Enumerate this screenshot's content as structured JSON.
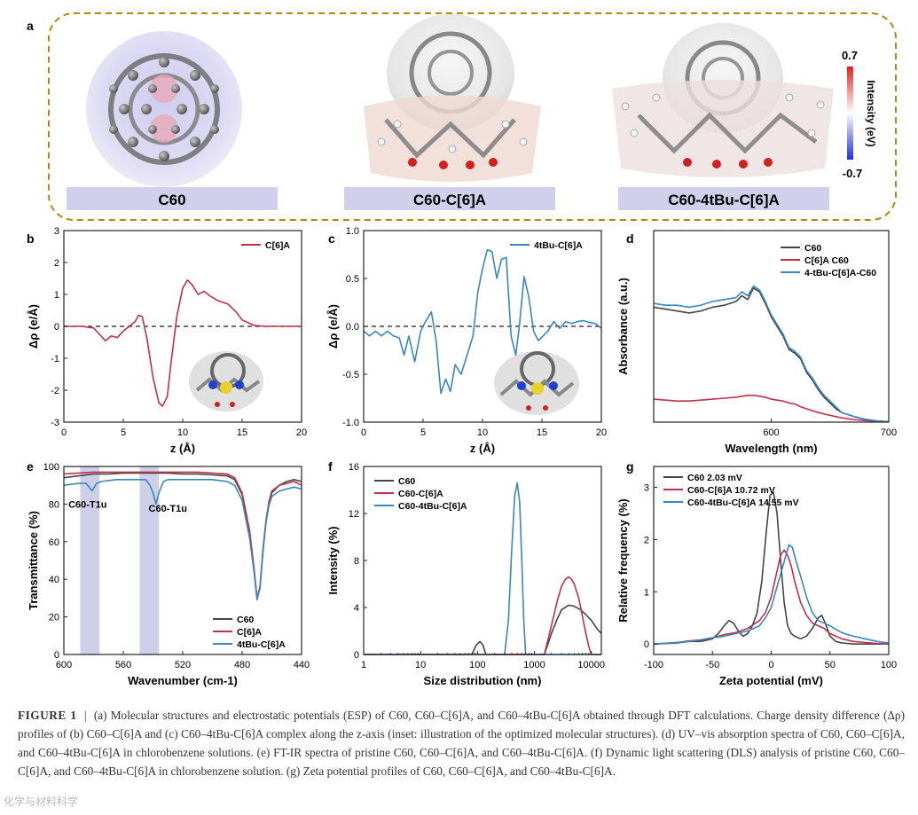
{
  "panel_letters": [
    "a",
    "b",
    "c",
    "d",
    "e",
    "f",
    "g"
  ],
  "panel_a": {
    "labels": [
      "C60",
      "C60-C[6]A",
      "C60-4tBu-C[6]A"
    ],
    "colorbar": {
      "title": "Intensity (eV)",
      "max": "0.7",
      "min": "-0.7"
    }
  },
  "chart_data": [
    {
      "id": "b",
      "type": "line",
      "xlabel": "z (Å)",
      "ylabel": "Δρ (e/Å)",
      "xlim": [
        0,
        20
      ],
      "ylim": [
        -3,
        3
      ],
      "xticks": [
        0,
        5,
        10,
        15,
        20
      ],
      "yticks": [
        -3,
        -2,
        -1,
        0,
        1,
        2,
        3
      ],
      "legend": "top-right",
      "series": [
        {
          "name": "C[6]A",
          "color": "#c0304a",
          "x": [
            0,
            1.5,
            2.5,
            3,
            3.5,
            4,
            4.5,
            5,
            5.5,
            6,
            6.3,
            6.6,
            7,
            7.5,
            8,
            8.3,
            8.7,
            9,
            9.5,
            10,
            10.4,
            10.8,
            11.3,
            11.8,
            12.3,
            13,
            13.8,
            14.5,
            15,
            16,
            17,
            20
          ],
          "y": [
            0,
            0,
            -0.05,
            -0.25,
            -0.45,
            -0.3,
            -0.35,
            -0.15,
            0,
            0.15,
            0.35,
            0.3,
            -0.4,
            -1.6,
            -2.4,
            -2.5,
            -2.2,
            -1.2,
            0.3,
            1.2,
            1.45,
            1.3,
            1.0,
            1.1,
            0.95,
            0.8,
            0.7,
            0.45,
            0.2,
            0.03,
            0,
            0
          ]
        }
      ],
      "zero_line": true
    },
    {
      "id": "c",
      "type": "line",
      "xlabel": "z (Å)",
      "ylabel": "Δρ (e/Å)",
      "xlim": [
        0,
        20
      ],
      "ylim": [
        -1.0,
        1.0
      ],
      "xticks": [
        0,
        5,
        10,
        15,
        20
      ],
      "yticks": [
        -1.0,
        -0.5,
        0.0,
        0.5,
        1.0
      ],
      "legend": "top-right",
      "series": [
        {
          "name": "4tBu-C[6]A",
          "color": "#3a86c0",
          "x": [
            0,
            0.5,
            1,
            1.5,
            2,
            2.5,
            3,
            3.4,
            3.8,
            4.3,
            4.8,
            5.2,
            5.7,
            6.1,
            6.5,
            6.9,
            7.3,
            7.7,
            8.2,
            8.7,
            9.2,
            9.6,
            10,
            10.4,
            10.8,
            11.2,
            11.6,
            12,
            12.4,
            12.8,
            13.1,
            13.5,
            13.9,
            14.3,
            14.7,
            15.1,
            15.5,
            16,
            16.5,
            17,
            17.5,
            18,
            18.5,
            19,
            19.5,
            20
          ],
          "y": [
            -0.05,
            -0.1,
            -0.05,
            -0.1,
            -0.05,
            -0.1,
            -0.12,
            -0.3,
            -0.1,
            -0.37,
            -0.05,
            0.05,
            0.15,
            -0.15,
            -0.7,
            -0.55,
            -0.68,
            -0.4,
            -0.5,
            -0.3,
            -0.1,
            0.35,
            0.6,
            0.8,
            0.78,
            0.5,
            0.7,
            0.72,
            -0.1,
            -0.3,
            0.0,
            0.52,
            0.3,
            -0.05,
            -0.15,
            -0.1,
            -0.05,
            0.05,
            -0.02,
            0.05,
            0.03,
            0.05,
            0.06,
            0.04,
            0.03,
            -0.02
          ]
        }
      ],
      "zero_line": true
    },
    {
      "id": "d",
      "type": "line",
      "xlabel": "Wavelength (nm)",
      "ylabel": "Absorbance (a.u.)",
      "xlim": [
        500,
        700
      ],
      "ylim": [
        0,
        1.0
      ],
      "xticks": [
        600,
        700
      ],
      "yticks": [],
      "legend": "top-right",
      "series": [
        {
          "name": "C60",
          "color": "#444444",
          "x": [
            500,
            510,
            520,
            530,
            540,
            550,
            560,
            570,
            575,
            580,
            585,
            590,
            595,
            600,
            605,
            610,
            615,
            620,
            625,
            630,
            635,
            640,
            645,
            650,
            655,
            660,
            670,
            680,
            690,
            700
          ],
          "y": [
            0.6,
            0.59,
            0.58,
            0.57,
            0.58,
            0.6,
            0.61,
            0.63,
            0.66,
            0.64,
            0.7,
            0.68,
            0.62,
            0.55,
            0.5,
            0.45,
            0.38,
            0.36,
            0.33,
            0.26,
            0.22,
            0.17,
            0.13,
            0.1,
            0.07,
            0.05,
            0.03,
            0.015,
            0.006,
            0.002
          ]
        },
        {
          "name": "C[6]A C60",
          "color": "#c0304a",
          "x": [
            500,
            510,
            520,
            530,
            540,
            550,
            560,
            570,
            580,
            585,
            590,
            595,
            600,
            605,
            610,
            615,
            620,
            625,
            630,
            640,
            650,
            660,
            670,
            680,
            690,
            700
          ],
          "y": [
            0.12,
            0.115,
            0.11,
            0.11,
            0.115,
            0.12,
            0.125,
            0.13,
            0.14,
            0.14,
            0.135,
            0.13,
            0.12,
            0.115,
            0.11,
            0.1,
            0.095,
            0.08,
            0.07,
            0.05,
            0.035,
            0.022,
            0.014,
            0.008,
            0.004,
            0.002
          ]
        },
        {
          "name": "4-tBu-C[6]A-C60",
          "color": "#3a86c0",
          "x": [
            500,
            510,
            520,
            530,
            540,
            550,
            560,
            570,
            575,
            580,
            585,
            590,
            595,
            600,
            605,
            610,
            615,
            620,
            625,
            630,
            635,
            640,
            645,
            650,
            655,
            660,
            670,
            680,
            690,
            700
          ],
          "y": [
            0.62,
            0.61,
            0.61,
            0.6,
            0.61,
            0.63,
            0.64,
            0.65,
            0.68,
            0.66,
            0.71,
            0.69,
            0.63,
            0.56,
            0.51,
            0.46,
            0.39,
            0.37,
            0.34,
            0.27,
            0.23,
            0.18,
            0.14,
            0.11,
            0.08,
            0.05,
            0.03,
            0.015,
            0.006,
            0.002
          ]
        }
      ]
    },
    {
      "id": "e",
      "type": "line",
      "xlabel": "Wavenumber (cm-1)",
      "ylabel": "Transmittance (%)",
      "xlim": [
        600,
        440
      ],
      "ylim": [
        0,
        100
      ],
      "xticks": [
        600,
        560,
        520,
        480,
        440
      ],
      "yticks": [
        0,
        20,
        40,
        60,
        80,
        100
      ],
      "legend": "bottom-right",
      "annotations": [
        "C60-T1u",
        "C60-T1u"
      ],
      "shaded_ranges": [
        [
          589,
          576
        ],
        [
          549,
          536
        ]
      ],
      "series": [
        {
          "name": "C60",
          "color": "#444444",
          "x": [
            600,
            590,
            580,
            570,
            560,
            550,
            540,
            530,
            520,
            510,
            500,
            490,
            485,
            480,
            475,
            472,
            470,
            468,
            466,
            464,
            462,
            460,
            455,
            450,
            445,
            440
          ],
          "y": [
            94,
            95,
            96,
            96,
            96.5,
            96.5,
            96.5,
            96.5,
            96,
            96,
            95.5,
            95,
            93,
            85,
            65,
            45,
            30,
            35,
            55,
            70,
            80,
            86,
            90,
            92,
            93,
            92
          ]
        },
        {
          "name": "C[6]A",
          "color": "#c0304a",
          "x": [
            600,
            590,
            580,
            570,
            560,
            550,
            540,
            530,
            520,
            510,
            500,
            490,
            485,
            480,
            475,
            472,
            470,
            468,
            466,
            464,
            462,
            460,
            455,
            450,
            445,
            440
          ],
          "y": [
            96,
            96.5,
            97,
            97,
            97,
            97,
            97,
            97,
            97,
            97,
            96.5,
            96,
            94,
            86,
            66,
            46,
            30,
            36,
            56,
            71,
            81,
            87,
            90,
            91,
            92,
            90
          ]
        },
        {
          "name": "4tBu-C[6]A",
          "color": "#3a86c0",
          "x": [
            600,
            590,
            585,
            583,
            581,
            578,
            575,
            565,
            555,
            545,
            542,
            540,
            538,
            536,
            533,
            530,
            520,
            510,
            500,
            490,
            485,
            480,
            475,
            472,
            470,
            468,
            466,
            464,
            462,
            460,
            455,
            450,
            445,
            440
          ],
          "y": [
            90,
            91,
            91,
            89,
            87,
            91,
            92,
            93,
            93,
            93,
            90,
            86,
            80,
            86,
            92,
            93,
            93,
            93,
            93,
            92,
            90,
            82,
            62,
            44,
            29,
            36,
            55,
            70,
            79,
            84,
            87,
            88,
            89,
            88
          ]
        }
      ]
    },
    {
      "id": "f",
      "type": "line",
      "xlabel": "Size distribution (nm)",
      "ylabel": "Intensity (%)",
      "xscale": "log",
      "xlim": [
        1,
        15000
      ],
      "ylim": [
        0,
        16
      ],
      "xticks": [
        1,
        10,
        100,
        1000,
        10000
      ],
      "yticks": [
        0,
        4,
        8,
        12,
        16
      ],
      "legend": "top-left",
      "series": [
        {
          "name": "C60",
          "color": "#444444",
          "x": [
            1,
            80,
            95,
            110,
            125,
            140,
            1500,
            2000,
            2500,
            3000,
            4000,
            5000,
            6500,
            8000,
            10000,
            13000,
            15000
          ],
          "y": [
            0,
            0,
            0.8,
            1.1,
            0.8,
            0,
            0,
            1.8,
            3.0,
            3.8,
            4.2,
            4.1,
            3.8,
            3.4,
            2.9,
            2.1,
            1.8
          ]
        },
        {
          "name": "C60-C[6]A",
          "color": "#c0304a",
          "x": [
            1,
            1500,
            2000,
            2500,
            3000,
            3500,
            4000,
            4500,
            5000,
            6000,
            7000,
            8000,
            9000,
            10000,
            15000
          ],
          "y": [
            0,
            0,
            2.5,
            4.5,
            5.8,
            6.4,
            6.6,
            6.4,
            6.0,
            4.8,
            3.2,
            1.8,
            0.7,
            0,
            0
          ]
        },
        {
          "name": "C60-4tBu-C[6]A",
          "color": "#3a86c0",
          "x": [
            1,
            300,
            350,
            400,
            450,
            500,
            550,
            600,
            650,
            700,
            800,
            15000
          ],
          "y": [
            0,
            0,
            3,
            9,
            13.5,
            14.6,
            13,
            8,
            3,
            0,
            0,
            0
          ]
        }
      ]
    },
    {
      "id": "g",
      "type": "line",
      "xlabel": "Zeta potential (mV)",
      "ylabel": "Relative frequency (%)",
      "xlim": [
        -100,
        100
      ],
      "ylim": [
        -0.2,
        3.4
      ],
      "xticks": [
        -100,
        -50,
        0,
        50,
        100
      ],
      "yticks": [
        0,
        1,
        2,
        3
      ],
      "legend": "top-left",
      "series": [
        {
          "name": "C60 2.03 mV",
          "color": "#444444",
          "x": [
            -100,
            -80,
            -70,
            -60,
            -50,
            -45,
            -40,
            -36,
            -32,
            -28,
            -24,
            -20,
            -16,
            -12,
            -8,
            -4,
            -1,
            2,
            5,
            8,
            11,
            14,
            17,
            20,
            25,
            30,
            35,
            40,
            43,
            46,
            50,
            55,
            60,
            70,
            80,
            100
          ],
          "y": [
            0,
            0.02,
            0.05,
            0.05,
            0.1,
            0.2,
            0.35,
            0.45,
            0.4,
            0.25,
            0.15,
            0.2,
            0.35,
            0.6,
            1.2,
            2.2,
            2.85,
            2.9,
            2.5,
            1.6,
            0.8,
            0.35,
            0.2,
            0.15,
            0.1,
            0.15,
            0.3,
            0.5,
            0.55,
            0.4,
            0.15,
            0.05,
            0.02,
            0,
            0,
            0
          ]
        },
        {
          "name": "C60-C[6]A 10.72 mV",
          "color": "#c0304a",
          "x": [
            -100,
            -80,
            -70,
            -60,
            -50,
            -40,
            -30,
            -20,
            -10,
            -5,
            0,
            5,
            8,
            11,
            14,
            17,
            20,
            25,
            30,
            35,
            40,
            45,
            50,
            55,
            60,
            70,
            80,
            90,
            100
          ],
          "y": [
            0,
            0.03,
            0.06,
            0.08,
            0.12,
            0.18,
            0.22,
            0.3,
            0.45,
            0.6,
            0.9,
            1.4,
            1.7,
            1.8,
            1.7,
            1.5,
            1.2,
            0.8,
            0.55,
            0.4,
            0.35,
            0.3,
            0.2,
            0.15,
            0.1,
            0.05,
            0.03,
            0.01,
            0
          ]
        },
        {
          "name": "C60-4tBu-C[6]A 14.55 mV",
          "color": "#3a86c0",
          "x": [
            -100,
            -80,
            -70,
            -60,
            -50,
            -40,
            -30,
            -20,
            -10,
            -5,
            0,
            5,
            10,
            15,
            18,
            21,
            25,
            30,
            35,
            40,
            45,
            50,
            55,
            60,
            65,
            70,
            80,
            90,
            100
          ],
          "y": [
            0,
            0.03,
            0.05,
            0.08,
            0.12,
            0.15,
            0.2,
            0.25,
            0.35,
            0.5,
            0.7,
            1.1,
            1.5,
            1.9,
            1.85,
            1.6,
            1.3,
            0.9,
            0.6,
            0.45,
            0.4,
            0.35,
            0.28,
            0.22,
            0.18,
            0.15,
            0.1,
            0.05,
            0.02
          ]
        }
      ]
    }
  ],
  "caption": {
    "label": "FIGURE 1",
    "separator": "|",
    "text": "(a) Molecular structures and electrostatic potentials (ESP) of C60, C60–C[6]A, and C60–4tBu-C[6]A obtained through DFT calculations. Charge density difference (Δρ) profiles of (b) C60–C[6]A and (c) C60–4tBu-C[6]A complex along the z-axis (inset: illustration of the optimized molecular structures). (d) UV–vis absorption spectra of C60, C60–C[6]A, and C60–4tBu-C[6]A in chlorobenzene solutions. (e) FT-IR spectra of pristine C60, C60–C[6]A, and C60–4tBu-C[6]A. (f) Dynamic light scattering (DLS) analysis of pristine C60, C60–C[6]A, and C60–4tBu-C[6]A in chlorobenzene solution. (g) Zeta potential profiles of C60, C60–C[6]A, and C60–4tBu-C[6]A."
  },
  "watermark": "化学与材料科学"
}
